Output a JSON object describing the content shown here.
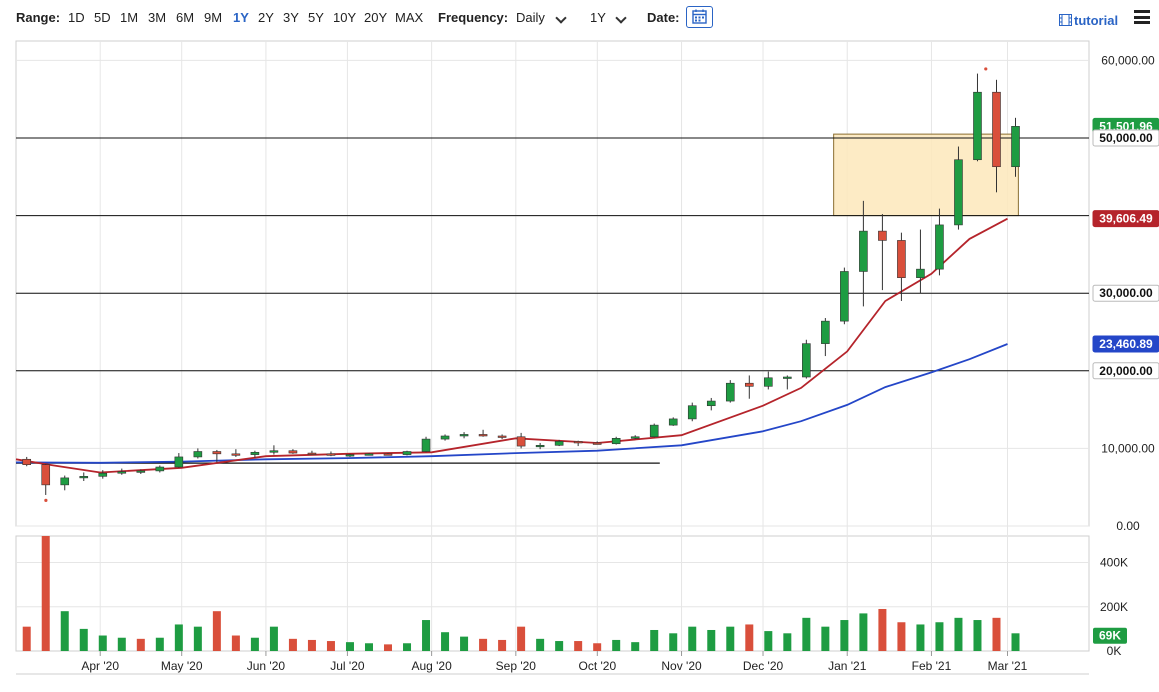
{
  "toolbar": {
    "range_label": "Range:",
    "ranges": [
      "1D",
      "5D",
      "1M",
      "3M",
      "6M",
      "9M",
      "1Y",
      "2Y",
      "3Y",
      "5Y",
      "10Y",
      "20Y",
      "MAX"
    ],
    "active_range": "1Y",
    "frequency_label": "Frequency:",
    "frequency_value": "Daily",
    "period_value": "1Y",
    "date_label": "Date:",
    "tutorial_label": "tutorial",
    "icons": {
      "calendar": "calendar-icon",
      "tutorial": "film-icon",
      "menu": "hamburger-menu-icon"
    },
    "accent_color": "#2a64c5"
  },
  "chart_data": {
    "type": "candlestick",
    "title": "",
    "x_ticks": [
      "Apr '20",
      "May '20",
      "Jun '20",
      "Jul '20",
      "Aug '20",
      "Sep '20",
      "Oct '20",
      "Nov '20",
      "Dec '20",
      "Jan '21",
      "Feb '21",
      "Mar '21"
    ],
    "x_tick_dates": [
      "2020-04-01",
      "2020-05-01",
      "2020-06-01",
      "2020-07-01",
      "2020-08-01",
      "2020-09-01",
      "2020-10-01",
      "2020-11-01",
      "2020-12-01",
      "2021-01-01",
      "2021-02-01",
      "2021-03-01"
    ],
    "x_range": [
      "2020-03-01",
      "2021-03-31"
    ],
    "price_axis": {
      "ticks": [
        "0.00",
        "10,000.00",
        "20,000.00",
        "30,000.00",
        "40,000.00",
        "50,000.00",
        "60,000.00"
      ],
      "tick_values": [
        0,
        10000,
        20000,
        30000,
        40000,
        50000,
        60000
      ],
      "ylim": [
        0,
        62500
      ]
    },
    "volume_axis": {
      "ticks": [
        "0K",
        "200K",
        "400K"
      ],
      "tick_values": [
        0,
        200,
        400
      ],
      "ylim": [
        0,
        520
      ]
    },
    "grid": true,
    "price_tags": [
      {
        "label": "51,501.96",
        "value": 51501.96,
        "color": "#1e9c42"
      },
      {
        "label": "50,000.00",
        "value": 50000,
        "color": "#ffffff"
      },
      {
        "label": "39,606.49",
        "value": 39606.49,
        "color": "#b5242b"
      },
      {
        "label": "30,000.00",
        "value": 30000,
        "color": "#ffffff"
      },
      {
        "label": "23,460.89",
        "value": 23460.89,
        "color": "#2446c8"
      },
      {
        "label": "20,000.00",
        "value": 20000,
        "color": "#ffffff"
      }
    ],
    "volume_tag": {
      "label": "69K",
      "value": 69,
      "color": "#1e9c42"
    },
    "horizontal_lines": [
      50000,
      40000,
      30000,
      20000
    ],
    "trendline": {
      "x": [
        "2020-03-01",
        "2020-10-24"
      ],
      "y": [
        8100,
        8100
      ]
    },
    "highlight_zone": {
      "x": [
        "2020-12-27",
        "2021-03-05"
      ],
      "y": [
        40000,
        50500
      ],
      "fill": "#fde7bb",
      "stroke": "#8a6d2f"
    },
    "ma_50": {
      "color": "#b5242b",
      "x": [
        "2020-03-01",
        "2020-03-15",
        "2020-04-01",
        "2020-05-01",
        "2020-06-01",
        "2020-07-01",
        "2020-08-01",
        "2020-09-01",
        "2020-10-01",
        "2020-11-01",
        "2020-12-01",
        "2020-12-15",
        "2021-01-01",
        "2021-01-15",
        "2021-02-01",
        "2021-02-15",
        "2021-03-01"
      ],
      "y": [
        8600,
        7800,
        6900,
        7500,
        9000,
        9300,
        9500,
        11300,
        10700,
        11700,
        15500,
        17800,
        22500,
        29000,
        32500,
        37000,
        39606
      ]
    },
    "ma_200": {
      "color": "#2446c8",
      "x": [
        "2020-03-01",
        "2020-04-01",
        "2020-05-01",
        "2020-06-01",
        "2020-07-01",
        "2020-08-01",
        "2020-09-01",
        "2020-10-01",
        "2020-11-01",
        "2020-12-01",
        "2020-12-15",
        "2021-01-01",
        "2021-01-15",
        "2021-02-01",
        "2021-02-15",
        "2021-03-01"
      ],
      "y": [
        8200,
        8150,
        8300,
        8600,
        8750,
        9000,
        9400,
        9700,
        10400,
        12200,
        13500,
        15600,
        17900,
        19800,
        21500,
        23460
      ]
    },
    "candles_weekly_ohlc": [
      [
        "2020-03-02",
        8600,
        8900,
        7700,
        7900
      ],
      [
        "2020-03-09",
        7900,
        8000,
        4000,
        5300
      ],
      [
        "2020-03-16",
        5300,
        6500,
        4600,
        6200
      ],
      [
        "2020-03-23",
        6200,
        6900,
        5800,
        6400
      ],
      [
        "2020-03-30",
        6400,
        7200,
        6100,
        6800
      ],
      [
        "2020-04-06",
        6800,
        7400,
        6600,
        7000
      ],
      [
        "2020-04-13",
        7000,
        7300,
        6700,
        7100
      ],
      [
        "2020-04-20",
        7100,
        7800,
        6900,
        7600
      ],
      [
        "2020-04-27",
        7600,
        9400,
        7500,
        8900
      ],
      [
        "2020-05-04",
        8900,
        10000,
        8700,
        9600
      ],
      [
        "2020-05-11",
        9600,
        9800,
        8200,
        9300
      ],
      [
        "2020-05-18",
        9300,
        9900,
        8900,
        9200
      ],
      [
        "2020-05-25",
        9200,
        9700,
        8800,
        9500
      ],
      [
        "2020-06-01",
        9500,
        10400,
        9200,
        9700
      ],
      [
        "2020-06-08",
        9700,
        9900,
        9300,
        9400
      ],
      [
        "2020-06-15",
        9400,
        9700,
        9200,
        9300
      ],
      [
        "2020-06-22",
        9300,
        9600,
        9000,
        9100
      ],
      [
        "2020-06-29",
        9100,
        9300,
        8900,
        9200
      ],
      [
        "2020-07-06",
        9200,
        9400,
        9100,
        9300
      ],
      [
        "2020-07-13",
        9300,
        9400,
        9100,
        9200
      ],
      [
        "2020-07-20",
        9200,
        9700,
        9100,
        9600
      ],
      [
        "2020-07-27",
        9600,
        11500,
        9500,
        11200
      ],
      [
        "2020-08-03",
        11200,
        11800,
        11000,
        11600
      ],
      [
        "2020-08-10",
        11600,
        12100,
        11300,
        11800
      ],
      [
        "2020-08-17",
        11800,
        12400,
        11500,
        11600
      ],
      [
        "2020-08-24",
        11600,
        11800,
        11200,
        11500
      ],
      [
        "2020-08-31",
        11500,
        12000,
        10000,
        10300
      ],
      [
        "2020-09-07",
        10300,
        10700,
        9900,
        10400
      ],
      [
        "2020-09-14",
        10400,
        11100,
        10300,
        10900
      ],
      [
        "2020-09-21",
        10900,
        11000,
        10300,
        10700
      ],
      [
        "2020-09-28",
        10700,
        10900,
        10500,
        10600
      ],
      [
        "2020-10-05",
        10600,
        11500,
        10500,
        11300
      ],
      [
        "2020-10-12",
        11300,
        11700,
        11200,
        11500
      ],
      [
        "2020-10-19",
        11500,
        13200,
        11400,
        13000
      ],
      [
        "2020-10-26",
        13000,
        14000,
        12900,
        13800
      ],
      [
        "2020-11-02",
        13800,
        15900,
        13500,
        15500
      ],
      [
        "2020-11-09",
        15500,
        16500,
        14900,
        16100
      ],
      [
        "2020-11-16",
        16100,
        18800,
        15900,
        18400
      ],
      [
        "2020-11-23",
        18400,
        19400,
        16400,
        18000
      ],
      [
        "2020-11-30",
        18000,
        19900,
        17600,
        19100
      ],
      [
        "2020-12-07",
        19100,
        19400,
        17600,
        19200
      ],
      [
        "2020-12-14",
        19200,
        24000,
        19000,
        23500
      ],
      [
        "2020-12-21",
        23500,
        26800,
        21900,
        26400
      ],
      [
        "2020-12-28",
        26400,
        33300,
        26000,
        32800
      ],
      [
        "2021-01-04",
        32800,
        41900,
        28300,
        38000
      ],
      [
        "2021-01-11",
        38000,
        40200,
        30400,
        36800
      ],
      [
        "2021-01-18",
        36800,
        37800,
        29000,
        32000
      ],
      [
        "2021-01-25",
        32000,
        38200,
        30000,
        33100
      ],
      [
        "2021-02-01",
        33100,
        40900,
        32300,
        38800
      ],
      [
        "2021-02-08",
        38800,
        48900,
        38200,
        47200
      ],
      [
        "2021-02-15",
        47200,
        58300,
        47000,
        55900
      ],
      [
        "2021-02-22",
        55900,
        57500,
        43000,
        46300
      ],
      [
        "2021-03-01",
        46300,
        52600,
        45000,
        51502
      ]
    ],
    "volume_weekly_k": [
      [
        110,
        "#d94f3b"
      ],
      [
        520,
        "#d94f3b"
      ],
      [
        180,
        "#1e9c42"
      ],
      [
        100,
        "#1e9c42"
      ],
      [
        70,
        "#1e9c42"
      ],
      [
        60,
        "#1e9c42"
      ],
      [
        55,
        "#d94f3b"
      ],
      [
        60,
        "#1e9c42"
      ],
      [
        120,
        "#1e9c42"
      ],
      [
        110,
        "#1e9c42"
      ],
      [
        180,
        "#d94f3b"
      ],
      [
        70,
        "#d94f3b"
      ],
      [
        60,
        "#1e9c42"
      ],
      [
        110,
        "#1e9c42"
      ],
      [
        55,
        "#d94f3b"
      ],
      [
        50,
        "#d94f3b"
      ],
      [
        45,
        "#d94f3b"
      ],
      [
        40,
        "#1e9c42"
      ],
      [
        35,
        "#1e9c42"
      ],
      [
        30,
        "#d94f3b"
      ],
      [
        35,
        "#1e9c42"
      ],
      [
        140,
        "#1e9c42"
      ],
      [
        85,
        "#1e9c42"
      ],
      [
        65,
        "#1e9c42"
      ],
      [
        55,
        "#d94f3b"
      ],
      [
        50,
        "#d94f3b"
      ],
      [
        110,
        "#d94f3b"
      ],
      [
        55,
        "#1e9c42"
      ],
      [
        45,
        "#1e9c42"
      ],
      [
        45,
        "#d94f3b"
      ],
      [
        35,
        "#d94f3b"
      ],
      [
        50,
        "#1e9c42"
      ],
      [
        40,
        "#1e9c42"
      ],
      [
        95,
        "#1e9c42"
      ],
      [
        80,
        "#1e9c42"
      ],
      [
        110,
        "#1e9c42"
      ],
      [
        95,
        "#1e9c42"
      ],
      [
        110,
        "#1e9c42"
      ],
      [
        120,
        "#d94f3b"
      ],
      [
        90,
        "#1e9c42"
      ],
      [
        80,
        "#1e9c42"
      ],
      [
        150,
        "#1e9c42"
      ],
      [
        110,
        "#1e9c42"
      ],
      [
        140,
        "#1e9c42"
      ],
      [
        170,
        "#1e9c42"
      ],
      [
        190,
        "#d94f3b"
      ],
      [
        130,
        "#d94f3b"
      ],
      [
        120,
        "#1e9c42"
      ],
      [
        130,
        "#1e9c42"
      ],
      [
        150,
        "#1e9c42"
      ],
      [
        140,
        "#1e9c42"
      ],
      [
        150,
        "#d94f3b"
      ],
      [
        80,
        "#1e9c42"
      ]
    ],
    "markers": [
      {
        "x": "2020-03-12",
        "y": 3300,
        "color": "#d94f3b"
      },
      {
        "x": "2021-02-21",
        "y": 58900,
        "color": "#d94f3b"
      }
    ]
  }
}
